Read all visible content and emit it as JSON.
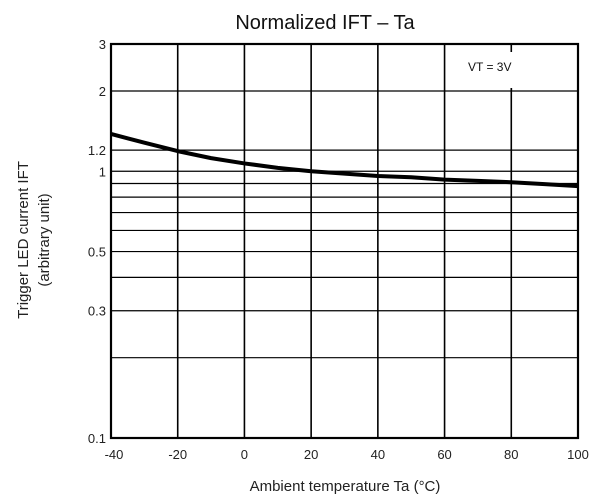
{
  "chart_data": {
    "type": "line",
    "title": "Normalized IFT – Ta",
    "xlabel": "Ambient temperature Ta (°C)",
    "ylabel_line1": "Trigger LED current IFT",
    "ylabel_line2": "(arbitrary unit)",
    "annotation": "VT = 3V",
    "x_scale": "linear",
    "y_scale": "log",
    "xlim": [
      -40,
      100
    ],
    "ylim": [
      0.1,
      3
    ],
    "x_ticks": [
      -40,
      -20,
      0,
      20,
      40,
      60,
      80,
      100
    ],
    "x_tick_labels": [
      "-40",
      "-20",
      "0",
      "20",
      "40",
      "60",
      "80",
      "100"
    ],
    "y_ticks": [
      0.1,
      0.3,
      0.5,
      1,
      1.2,
      2,
      3
    ],
    "y_tick_labels": [
      "0.1",
      "0.3",
      "0.5",
      "1",
      "1.2",
      "2",
      "3"
    ],
    "y_gridlines": [
      0.2,
      0.3,
      0.4,
      0.5,
      0.6,
      0.7,
      0.8,
      0.9,
      1,
      1.2,
      2
    ],
    "grid": true,
    "series": [
      {
        "x": [
          -40,
          -30,
          -20,
          -10,
          0,
          10,
          20,
          30,
          40,
          50,
          60,
          70,
          80,
          90,
          100
        ],
        "y": [
          1.38,
          1.28,
          1.19,
          1.12,
          1.07,
          1.03,
          1.0,
          0.98,
          0.96,
          0.95,
          0.93,
          0.92,
          0.91,
          0.895,
          0.88
        ]
      }
    ]
  }
}
